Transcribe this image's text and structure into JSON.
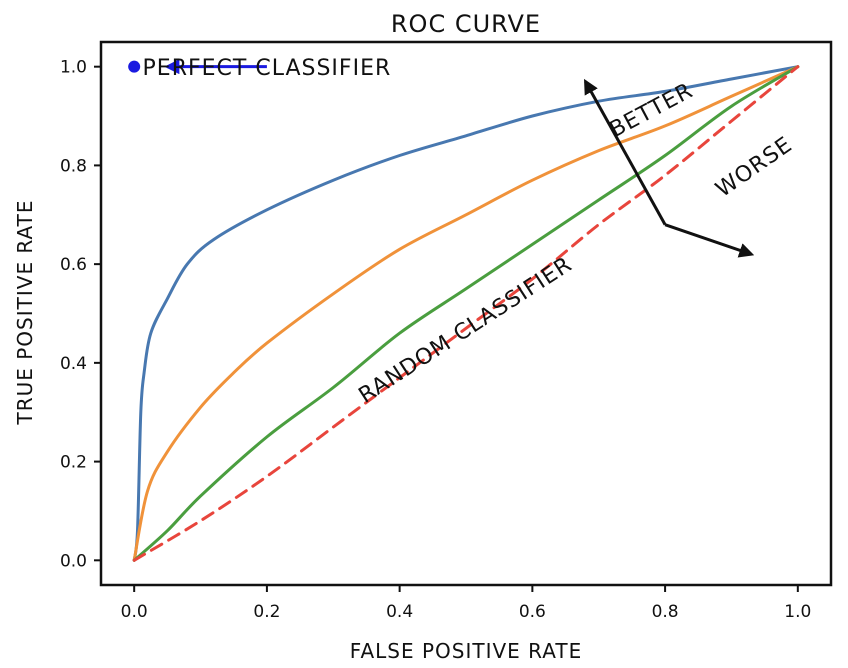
{
  "chart_data": {
    "type": "line",
    "title": "ROC CURVE",
    "xlabel": "FALSE POSITIVE RATE",
    "ylabel": "TRUE POSITIVE RATE",
    "xlim": [
      -0.05,
      1.05
    ],
    "ylim": [
      -0.05,
      1.05
    ],
    "xticks": [
      "0.0",
      "0.2",
      "0.4",
      "0.6",
      "0.8",
      "1.0"
    ],
    "yticks": [
      "0.0",
      "0.2",
      "0.4",
      "0.6",
      "0.8",
      "1.0"
    ],
    "grid": false,
    "series": [
      {
        "color": "#4878b0",
        "style": "solid",
        "x": [
          0.0,
          0.005,
          0.01,
          0.015,
          0.025,
          0.05,
          0.08,
          0.12,
          0.2,
          0.3,
          0.4,
          0.5,
          0.6,
          0.7,
          0.8,
          0.9,
          1.0
        ],
        "y": [
          0.0,
          0.06,
          0.3,
          0.38,
          0.46,
          0.53,
          0.6,
          0.65,
          0.71,
          0.77,
          0.82,
          0.86,
          0.9,
          0.93,
          0.95,
          0.975,
          1.0
        ]
      },
      {
        "color": "#f0923a",
        "style": "solid",
        "x": [
          0.0,
          0.02,
          0.05,
          0.1,
          0.15,
          0.2,
          0.3,
          0.4,
          0.5,
          0.6,
          0.7,
          0.8,
          0.9,
          1.0
        ],
        "y": [
          0.0,
          0.14,
          0.22,
          0.31,
          0.38,
          0.44,
          0.54,
          0.63,
          0.7,
          0.77,
          0.83,
          0.88,
          0.94,
          1.0
        ]
      },
      {
        "color": "#4a9e3f",
        "style": "solid",
        "x": [
          0.0,
          0.05,
          0.1,
          0.2,
          0.3,
          0.4,
          0.5,
          0.6,
          0.7,
          0.8,
          0.9,
          1.0
        ],
        "y": [
          0.0,
          0.06,
          0.13,
          0.25,
          0.35,
          0.46,
          0.55,
          0.64,
          0.73,
          0.82,
          0.92,
          1.0
        ]
      },
      {
        "color": "#e8453c",
        "style": "dashed",
        "x": [
          0.0,
          0.1,
          0.2,
          0.3,
          0.4,
          0.5,
          0.6,
          0.7,
          0.8,
          0.9,
          1.0
        ],
        "y": [
          0.0,
          0.08,
          0.17,
          0.27,
          0.37,
          0.47,
          0.57,
          0.68,
          0.78,
          0.89,
          1.0
        ]
      }
    ],
    "points": [
      {
        "x": 0.0,
        "y": 1.0,
        "color": "#1a1ae0"
      }
    ],
    "annotations": [
      {
        "text": "PERFECT CLASSIFIER",
        "x": 0.2,
        "y": 0.995,
        "color": "#1a1ae0",
        "rotate": 0
      },
      {
        "text": "BETTER",
        "x": 0.78,
        "y": 0.91,
        "color": "#111111",
        "rotate": -28
      },
      {
        "text": "WORSE",
        "x": 0.935,
        "y": 0.795,
        "color": "#111111",
        "rotate": -35
      },
      {
        "text": "RANDOM CLASSIFIER",
        "x": 0.5,
        "y": 0.465,
        "color": "#e8453c",
        "rotate": -33
      }
    ],
    "arrows": [
      {
        "x1": 0.2,
        "y1": 1.0,
        "x2": 0.05,
        "y2": 1.0,
        "color": "#1a1ae0"
      },
      {
        "x1": 0.8,
        "y1": 0.68,
        "x2": 0.68,
        "y2": 0.97,
        "color": "#111111"
      },
      {
        "x1": 0.8,
        "y1": 0.68,
        "x2": 0.93,
        "y2": 0.62,
        "color": "#111111"
      }
    ]
  }
}
